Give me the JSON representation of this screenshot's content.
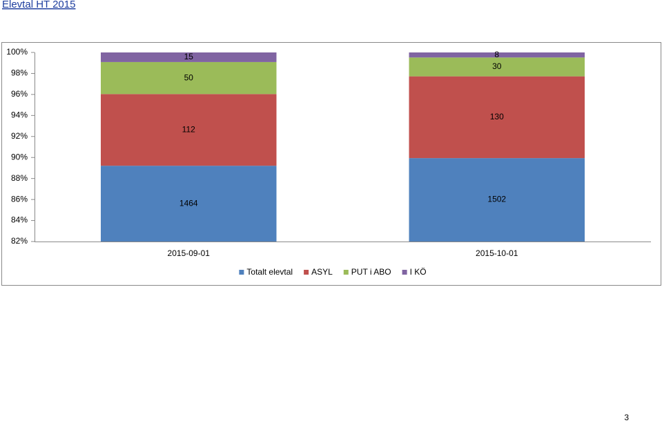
{
  "chart_data": {
    "type": "bar",
    "stacked": "percent",
    "title": "Elevtal HT 2015",
    "categories": [
      "2015-09-01",
      "2015-10-01"
    ],
    "series": [
      {
        "name": "Totalt elevtal",
        "color": "#4f81bd",
        "values": [
          1464,
          1502
        ]
      },
      {
        "name": "ASYL",
        "color": "#c0504d",
        "values": [
          112,
          130
        ]
      },
      {
        "name": "PUT i ABO",
        "color": "#9bbb59",
        "values": [
          50,
          30
        ]
      },
      {
        "name": "I KÖ",
        "color": "#8064a2",
        "values": [
          15,
          8
        ]
      }
    ],
    "ylim": [
      82,
      100
    ],
    "yticks": [
      {
        "value": 82,
        "label": "82%"
      },
      {
        "value": 84,
        "label": "84%"
      },
      {
        "value": 86,
        "label": "86%"
      },
      {
        "value": 88,
        "label": "88%"
      },
      {
        "value": 90,
        "label": "90%"
      },
      {
        "value": 92,
        "label": "92%"
      },
      {
        "value": 94,
        "label": "94%"
      },
      {
        "value": 96,
        "label": "96%"
      },
      {
        "value": 98,
        "label": "98%"
      },
      {
        "value": 100,
        "label": "100%"
      }
    ],
    "grid": false,
    "legend": "bottom"
  },
  "page_number": 3
}
